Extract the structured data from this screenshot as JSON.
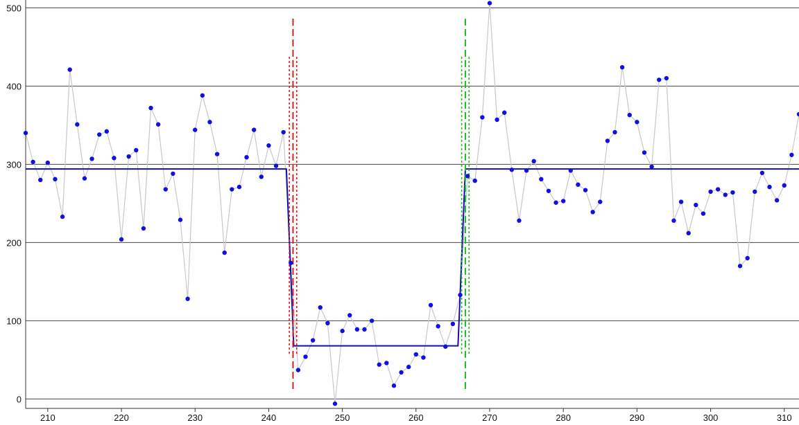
{
  "chart_data": {
    "type": "line",
    "title": "",
    "xlabel": "",
    "ylabel": "",
    "xlim": [
      207,
      312
    ],
    "ylim": [
      -12,
      510
    ],
    "grid": "horizontal",
    "x_ticks": [
      210,
      220,
      230,
      240,
      250,
      260,
      270,
      280,
      290,
      300,
      310
    ],
    "y_ticks": [
      0,
      100,
      200,
      300,
      400,
      500
    ],
    "series": [
      {
        "role": "observations",
        "style": "light gray line with blue dots",
        "x_start": 207,
        "x_step": 1,
        "values": [
          340,
          303,
          280,
          302,
          281,
          233,
          421,
          351,
          282,
          307,
          338,
          342,
          308,
          204,
          310,
          318,
          218,
          372,
          351,
          268,
          288,
          229,
          128,
          344,
          388,
          354,
          313,
          187,
          268,
          271,
          309,
          344,
          284,
          324,
          298,
          341,
          174,
          37,
          54,
          75,
          117,
          97,
          -6,
          87,
          107,
          89,
          89,
          100,
          44,
          46,
          17,
          34,
          41,
          57,
          53,
          120,
          93,
          67,
          96,
          133,
          285,
          279,
          360,
          506,
          357,
          366,
          293,
          228,
          292,
          304,
          281,
          266,
          251,
          253,
          292,
          274,
          267,
          239,
          252,
          330,
          341,
          424,
          363,
          354,
          315,
          297,
          408,
          410,
          228,
          252,
          212,
          248,
          237,
          265,
          268,
          261,
          264,
          170,
          180,
          265,
          289,
          271,
          254,
          273,
          312,
          364
        ]
      },
      {
        "role": "fitted-step",
        "style": "blue line",
        "x": [
          207,
          242.4,
          243.4,
          265.7,
          266.7,
          312
        ],
        "y": [
          294,
          294,
          68,
          68,
          294,
          294
        ]
      }
    ],
    "change_points": [
      {
        "x": 243.3,
        "ci": [
          242.8,
          243.8
        ],
        "color": "#e31a1c"
      },
      {
        "x": 266.7,
        "ci": [
          266.2,
          267.2
        ],
        "color": "#22bb22"
      }
    ],
    "colors": {
      "observation_line": "#c8c8c8",
      "observation_dot": "#1010e0",
      "fit_line": "#1010b0",
      "grid": "#444444"
    }
  }
}
